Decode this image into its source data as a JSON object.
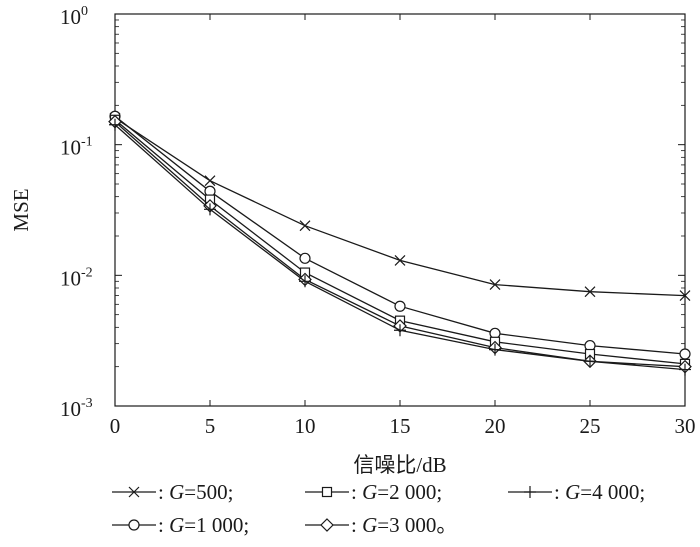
{
  "chart_data": {
    "type": "line",
    "xlabel": "信噪比/dB",
    "ylabel": "MSE",
    "x": [
      0,
      5,
      10,
      15,
      20,
      25,
      30
    ],
    "xlim": [
      0,
      30
    ],
    "ylim": [
      0.001,
      1
    ],
    "yscale": "log",
    "xticks": [
      "0",
      "5",
      "10",
      "15",
      "20",
      "25",
      "30"
    ],
    "yticks": [
      {
        "base": "10",
        "exp": "0"
      },
      {
        "base": "10",
        "exp": "-1"
      },
      {
        "base": "10",
        "exp": "-2"
      },
      {
        "base": "10",
        "exp": "-3"
      }
    ],
    "grid": false,
    "legend_position": "bottom",
    "series": [
      {
        "name": "G=500",
        "marker": "x",
        "values": [
          0.16,
          0.053,
          0.024,
          0.013,
          0.0085,
          0.0075,
          0.007
        ]
      },
      {
        "name": "G=1 000",
        "marker": "circle",
        "values": [
          0.165,
          0.044,
          0.0135,
          0.0058,
          0.0036,
          0.0029,
          0.0025
        ]
      },
      {
        "name": "G=2 000",
        "marker": "square",
        "values": [
          0.155,
          0.038,
          0.0105,
          0.0045,
          0.0031,
          0.0025,
          0.0021
        ]
      },
      {
        "name": "G=3 000",
        "marker": "diamond",
        "values": [
          0.15,
          0.034,
          0.0093,
          0.0041,
          0.0028,
          0.0022,
          0.002
        ]
      },
      {
        "name": "G=4 000",
        "marker": "plus",
        "values": [
          0.142,
          0.032,
          0.009,
          0.0038,
          0.0027,
          0.0022,
          0.0019
        ]
      }
    ]
  },
  "legend": {
    "rows": [
      [
        {
          "series": 0,
          "sep": " : ",
          "label_italic": "G",
          "label_rest": "=500;"
        },
        {
          "series": 2,
          "sep": " : ",
          "label_italic": "G",
          "label_rest": "=2 000;"
        },
        {
          "series": 4,
          "sep": " : ",
          "label_italic": "G",
          "label_rest": "=4 000;"
        }
      ],
      [
        {
          "series": 1,
          "sep": " : ",
          "label_italic": "G",
          "label_rest": "=1 000;"
        },
        {
          "series": 3,
          "sep": " : ",
          "label_italic": "G",
          "label_rest": "=3 000。"
        }
      ]
    ]
  }
}
